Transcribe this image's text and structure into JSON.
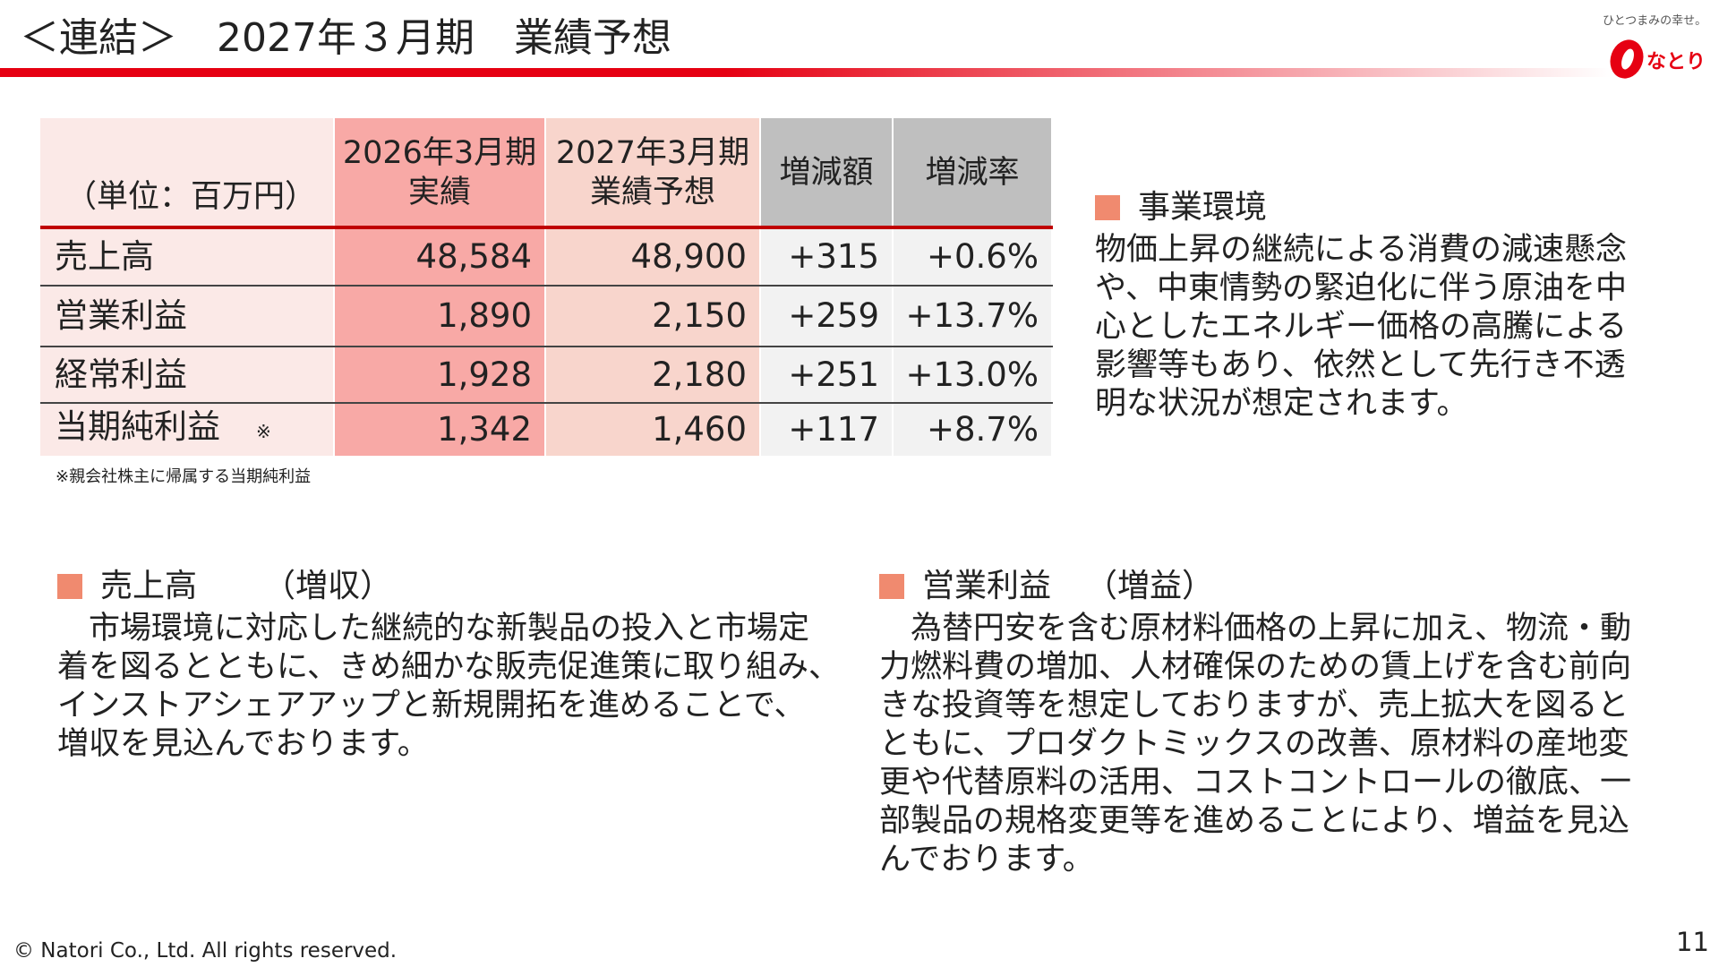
{
  "header": {
    "title": "＜連結＞　2027年３月期　業績予想",
    "logo_tagline": "ひとつまみの幸せ。",
    "logo_text": "なとり"
  },
  "table": {
    "unit": "（単位：百万円）",
    "columns": [
      [
        "2026年3月期",
        "実績"
      ],
      [
        "2027年3月期",
        "業績予想"
      ],
      [
        "増減額"
      ],
      [
        "増減率"
      ]
    ],
    "rows": [
      [
        "売上高",
        "48,584",
        "48,900",
        "+315",
        "+0.6%"
      ],
      [
        "営業利益",
        "1,890",
        "2,150",
        "+259",
        "+13.7%"
      ],
      [
        "経常利益",
        "1,928",
        "2,180",
        "+251",
        "+13.0%"
      ],
      [
        "当期純利益",
        "1,342",
        "1,460",
        "+117",
        "+8.7%"
      ]
    ],
    "note_mark": "※"
  },
  "footnote": "※親会社株主に帰属する当期純利益",
  "sections": [
    {
      "heading": "事業環境",
      "lines": [
        "物価上昇の継続による消費の減速懸念",
        "や、中東情勢の緊迫化に伴う原油を中",
        "心としたエネルギー価格の高騰による",
        "影響等もあり、依然として先行き不透",
        "明な状況が想定されます。"
      ]
    },
    {
      "heading": "売上高",
      "tag": "（増収）",
      "lines": [
        "市場環境に対応した継続的な新製品の投入と市場定",
        "着を図るとともに、きめ細かな販売促進策に取り組み、",
        "インストアシェアアップと新規開拓を進めることで、",
        "増収を見込んでおります。"
      ]
    },
    {
      "heading": "営業利益",
      "tag": "（増益）",
      "lines": [
        "為替円安を含む原材料価格の上昇に加え、物流・動",
        "力燃料費の増加、人材確保のための賃上げを含む前向",
        "きな投資等を想定しておりますが、売上拡大を図ると",
        "ともに、プロダクトミックスの改善、原材料の産地変",
        "更や代替原料の活用、コストコントロールの徹底、一",
        "部製品の規格変更等を進めることにより、増益を見込",
        "んでおります。"
      ]
    }
  ],
  "footer": {
    "copyright": "© Natori Co., Ltd. All rights reserved.",
    "page": "11"
  }
}
